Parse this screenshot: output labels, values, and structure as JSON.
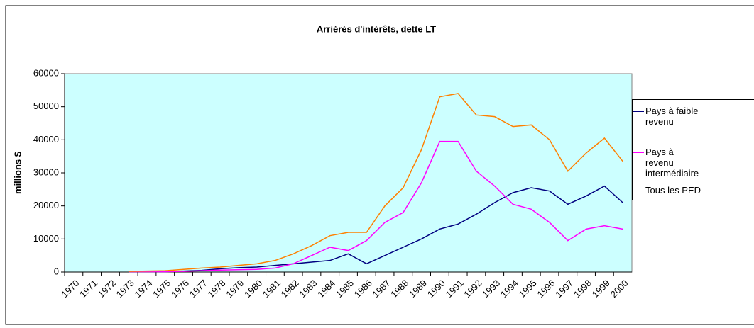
{
  "chart_data": {
    "type": "line",
    "title": "Arriérés d'intérêts, dette LT",
    "y_label": "millions $",
    "categories": [
      "1970",
      "1971",
      "1972",
      "1973",
      "1974",
      "1975",
      "1976",
      "1977",
      "1978",
      "1979",
      "1980",
      "1981",
      "1982",
      "1983",
      "1984",
      "1985",
      "1986",
      "1987",
      "1988",
      "1989",
      "1990",
      "1991",
      "1992",
      "1993",
      "1994",
      "1995",
      "1996",
      "1997",
      "1998",
      "1999",
      "2000"
    ],
    "ylim": [
      0,
      60000
    ],
    "yticks": [
      0,
      10000,
      20000,
      30000,
      40000,
      50000,
      60000
    ],
    "legend": "right",
    "series": [
      {
        "name": "Pays à faible revenu",
        "color": "#000080",
        "values": [
          null,
          null,
          null,
          100,
          100,
          100,
          300,
          500,
          1000,
          1300,
          1500,
          2000,
          2500,
          3000,
          3500,
          5500,
          2500,
          5000,
          7500,
          10000,
          13000,
          14500,
          17500,
          21000,
          24000,
          25500,
          24500,
          20500,
          23000,
          26000,
          21000
        ]
      },
      {
        "name": "Pays à revenu intermédiaire",
        "color": "#ff00ff",
        "values": [
          null,
          null,
          null,
          100,
          100,
          100,
          200,
          400,
          600,
          700,
          800,
          1200,
          2500,
          5000,
          7500,
          6500,
          9500,
          15000,
          18000,
          27000,
          39500,
          39500,
          30500,
          26000,
          20500,
          19000,
          15000,
          9500,
          13000,
          14000,
          13000
        ]
      },
      {
        "name": "Tous les PED",
        "color": "#ff8000",
        "values": [
          null,
          null,
          null,
          200,
          300,
          400,
          800,
          1200,
          1500,
          2000,
          2500,
          3500,
          5500,
          8000,
          11000,
          12000,
          12000,
          20000,
          25500,
          37000,
          53000,
          54000,
          47500,
          47000,
          44000,
          44500,
          40000,
          30500,
          36000,
          40500,
          33500
        ]
      }
    ]
  }
}
